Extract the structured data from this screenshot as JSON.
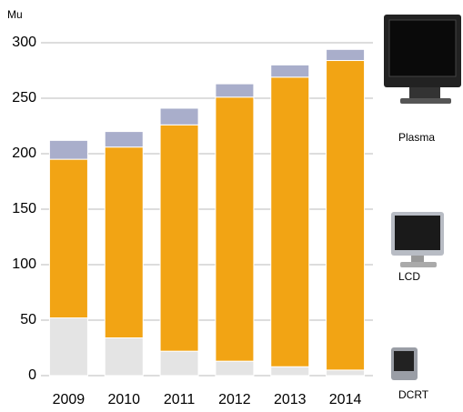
{
  "chart_data": {
    "type": "stacked-bar",
    "y_label": "Mu",
    "categories": [
      "2009",
      "2010",
      "2011",
      "2012",
      "2013",
      "2014"
    ],
    "series": [
      {
        "name": "DCRT",
        "color": "#e4e4e4",
        "values": [
          52,
          34,
          22,
          13,
          8,
          5
        ]
      },
      {
        "name": "LCD",
        "color": "#f2a414",
        "values": [
          143,
          172,
          204,
          238,
          261,
          279
        ]
      },
      {
        "name": "Plasma",
        "color": "#a9aecb",
        "values": [
          17,
          14,
          15,
          12,
          11,
          10
        ]
      }
    ],
    "ylim": [
      0,
      300
    ],
    "yticks": [
      0,
      50,
      100,
      150,
      200,
      250,
      300
    ],
    "grid": true
  }
}
